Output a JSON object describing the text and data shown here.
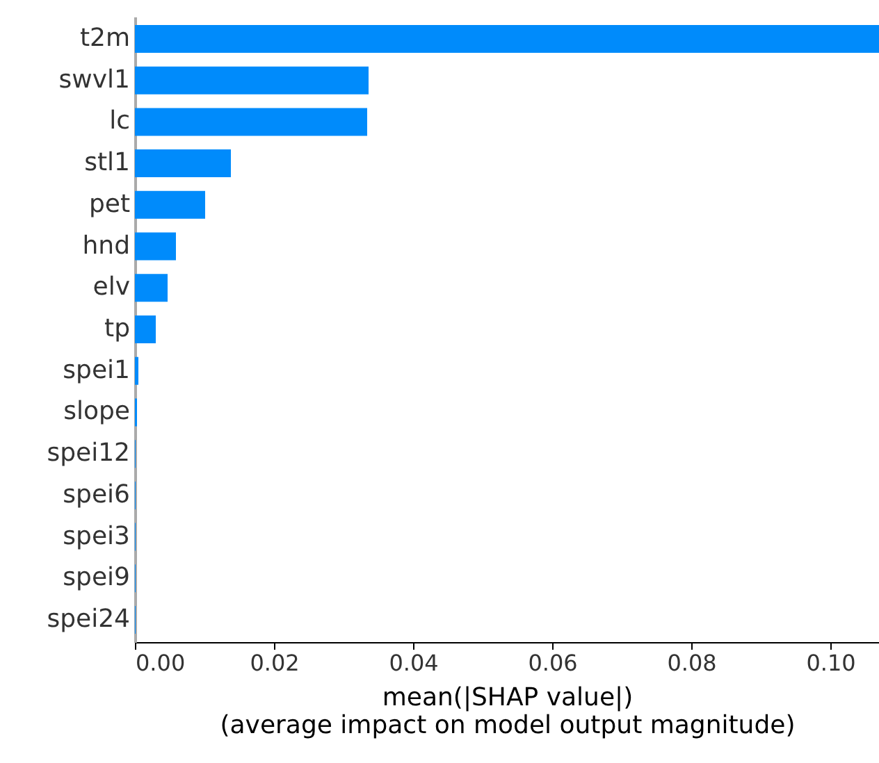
{
  "chart_data": {
    "type": "bar",
    "orientation": "horizontal",
    "categories": [
      "t2m",
      "swvl1",
      "lc",
      "stl1",
      "pet",
      "hnd",
      "elv",
      "tp",
      "spei1",
      "slope",
      "spei12",
      "spei6",
      "spei3",
      "spei9",
      "spei24"
    ],
    "values": [
      0.107,
      0.0336,
      0.0334,
      0.0138,
      0.0101,
      0.0059,
      0.0047,
      0.003,
      0.0005,
      0.0003,
      0.0001,
      0.0001,
      0.0001,
      0.0001,
      0.0001
    ],
    "color": "#008bfb",
    "xlabel": "mean(|SHAP value|)\n(average impact on model output magnitude)",
    "xlim": [
      0,
      0.107
    ],
    "xticks": [
      {
        "value": 0,
        "label": "0.00"
      },
      {
        "value": 0.02,
        "label": "0.02"
      },
      {
        "value": 0.04,
        "label": "0.04"
      },
      {
        "value": 0.06,
        "label": "0.06"
      },
      {
        "value": 0.08,
        "label": "0.08"
      },
      {
        "value": 0.1,
        "label": "0.10"
      }
    ],
    "grid": false
  }
}
